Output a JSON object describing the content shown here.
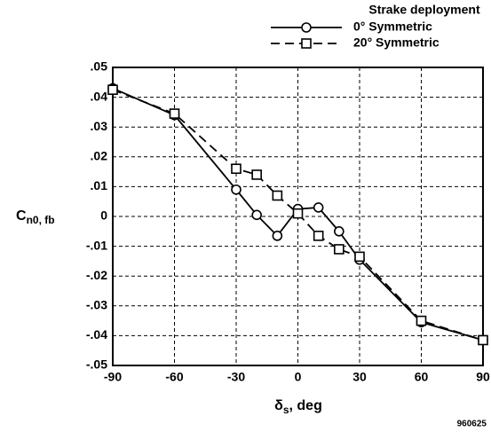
{
  "chart_data": {
    "type": "line",
    "legend_title": "Strake deployment",
    "x_label": {
      "main": "δ",
      "sub": "s",
      "rest": ", deg"
    },
    "y_label": {
      "main": "C",
      "sub": "n0, fb"
    },
    "footnote": "960625",
    "legend": "top-right",
    "grid": true,
    "xlim": [
      -90,
      90
    ],
    "xticks": [
      -90,
      -60,
      -30,
      0,
      30,
      60,
      90
    ],
    "ylim": [
      -0.05,
      0.05
    ],
    "yticks": [
      {
        "value": 0.05,
        "label": ".05"
      },
      {
        "value": 0.04,
        "label": ".04"
      },
      {
        "value": 0.03,
        "label": ".03"
      },
      {
        "value": 0.02,
        "label": ".02"
      },
      {
        "value": 0.01,
        "label": ".01"
      },
      0,
      {
        "value": -0.01,
        "label": "-.01"
      },
      {
        "value": -0.02,
        "label": "-.02"
      },
      {
        "value": -0.03,
        "label": "-.03"
      },
      {
        "value": -0.04,
        "label": "-.04"
      },
      {
        "value": -0.05,
        "label": "-.05"
      }
    ],
    "x": [
      -90,
      -60,
      -30,
      -20,
      -10,
      0,
      10,
      20,
      30,
      60,
      90
    ],
    "series": [
      {
        "name": "0° Symmetric",
        "color": "#000000",
        "marker": "circle",
        "dash": false,
        "values": [
          0.043,
          0.034,
          0.009,
          0.0005,
          -0.0065,
          0.0025,
          0.003,
          -0.005,
          -0.0145,
          -0.0355,
          -0.0415
        ]
      },
      {
        "name": "20° Symmetric",
        "color": "#000000",
        "marker": "square",
        "dash": true,
        "values": [
          0.0425,
          0.0345,
          0.016,
          0.014,
          0.007,
          0.001,
          -0.0065,
          -0.011,
          -0.0135,
          -0.035,
          -0.0415
        ]
      }
    ]
  }
}
